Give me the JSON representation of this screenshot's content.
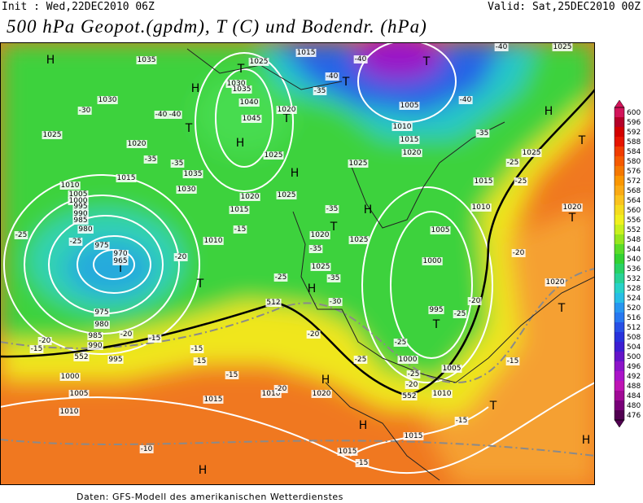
{
  "header": {
    "init": "Init : Wed,22DEC2010 06Z",
    "valid": "Valid: Sat,25DEC2010 00Z",
    "title": "500 hPa Geopot.(gpdm), T (C) und Bodendr. (hPa)"
  },
  "map_labels": [
    "H",
    "H",
    "T",
    "T",
    "H",
    "T",
    "H",
    "T",
    "T",
    "T",
    "H",
    "H",
    "T",
    "T",
    "H",
    "T",
    "T",
    "H",
    "H",
    "T",
    "H",
    "T",
    "T",
    "H",
    "1035",
    "1030",
    "1025",
    "1020",
    "1015",
    "1010",
    "1005",
    "1000",
    "995",
    "990",
    "985",
    "980",
    "975",
    "970",
    "965",
    "975",
    "980",
    "985",
    "990",
    "995",
    "1000",
    "1005",
    "1010",
    "1015",
    "1010",
    "1020",
    "1015",
    "1015",
    "1025",
    "1030",
    "1035",
    "1040",
    "1045",
    "1035",
    "1030",
    "1025",
    "1025",
    "1020",
    "1015",
    "1010",
    "1015",
    "1005",
    "1010",
    "1015",
    "1020",
    "1025",
    "1025",
    "1025",
    "1020",
    "1010",
    "1005",
    "1000",
    "995",
    "1000",
    "1005",
    "1010",
    "1015",
    "1025",
    "1020",
    "1020",
    "1025",
    "1020",
    "-30",
    "-40",
    "-40",
    "-35",
    "-35",
    "-25",
    "-25",
    "-20",
    "-25",
    "-30",
    "-20",
    "-20",
    "-15",
    "-20",
    "-15",
    "-15",
    "-15",
    "-15",
    "-20",
    "-25",
    "-25",
    "-25",
    "-20",
    "-25",
    "-20",
    "-20",
    "-15",
    "-15",
    "-10",
    "-15",
    "-35",
    "-35",
    "-35",
    "-40",
    "-35",
    "-40",
    "-40",
    "-35",
    "-25",
    "-25",
    "-15",
    "512",
    "552",
    "552",
    "-40"
  ],
  "colorbar": {
    "labels": [
      "600",
      "596",
      "592",
      "588",
      "584",
      "580",
      "576",
      "572",
      "568",
      "564",
      "560",
      "556",
      "552",
      "548",
      "544",
      "540",
      "536",
      "532",
      "528",
      "524",
      "520",
      "516",
      "512",
      "508",
      "504",
      "500",
      "496",
      "492",
      "488",
      "484",
      "480",
      "476"
    ],
    "colors": [
      "#d2145a",
      "#b40028",
      "#d20000",
      "#e61400",
      "#f03c00",
      "#f55a00",
      "#f57800",
      "#fa9600",
      "#faaa14",
      "#fac31e",
      "#f5dc1e",
      "#f0f01e",
      "#c8f01e",
      "#96e61e",
      "#5adc28",
      "#32d232",
      "#28d264",
      "#28d296",
      "#28d2c8",
      "#28bee6",
      "#2896f0",
      "#2878f0",
      "#2850e6",
      "#2832dc",
      "#3c1ed2",
      "#6414c8",
      "#8c14c8",
      "#aa14c8",
      "#be14b4",
      "#a00a96",
      "#780078",
      "#500050"
    ]
  },
  "footer": "Daten: GFS-Modell des amerikanischen Wetterdienstes"
}
